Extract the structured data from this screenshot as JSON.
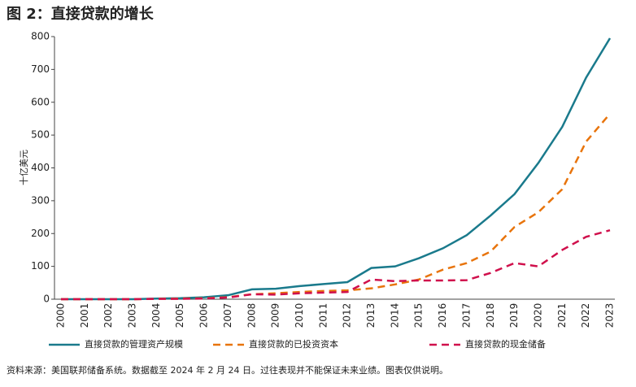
{
  "chart_data": {
    "type": "line",
    "title": "图 2：直接贷款的增长",
    "y_label": "十亿美元",
    "footnote": "资料来源：美国联邦储备系统。数据截至 2024 年 2 月 24 日。过往表现并不能保证未来业绩。图表仅供说明。",
    "categories": [
      "2000",
      "2001",
      "2002",
      "2003",
      "2004",
      "2005",
      "2006",
      "2007",
      "2008",
      "2009",
      "2010",
      "2011",
      "2012",
      "2013",
      "2014",
      "2015",
      "2016",
      "2017",
      "2018",
      "2019",
      "2020",
      "2021",
      "2022",
      "2023"
    ],
    "series": [
      {
        "name": "直接贷款的管理资产规模",
        "color": "#1a7a8c",
        "dash": "solid",
        "values": [
          0,
          0,
          0,
          0,
          2,
          3,
          6,
          12,
          30,
          32,
          40,
          46,
          52,
          95,
          100,
          125,
          155,
          195,
          255,
          320,
          415,
          525,
          675,
          795
        ]
      },
      {
        "name": "直接贷款的已投资资本",
        "color": "#e8740c",
        "dash": "dashed",
        "values": [
          0,
          0,
          0,
          0,
          1,
          2,
          3,
          6,
          15,
          18,
          22,
          25,
          27,
          33,
          45,
          60,
          90,
          110,
          145,
          220,
          265,
          335,
          480,
          565
        ]
      },
      {
        "name": "直接贷款的现金储备",
        "color": "#d0104c",
        "dash": "dashed",
        "values": [
          0,
          0,
          0,
          0,
          1,
          1,
          2,
          5,
          15,
          14,
          18,
          20,
          22,
          60,
          55,
          57,
          57,
          58,
          80,
          110,
          100,
          150,
          190,
          210
        ]
      }
    ],
    "ylim": [
      0,
      800
    ],
    "yticks": [
      0,
      100,
      200,
      300,
      400,
      500,
      600,
      700,
      800
    ],
    "grid": false
  }
}
